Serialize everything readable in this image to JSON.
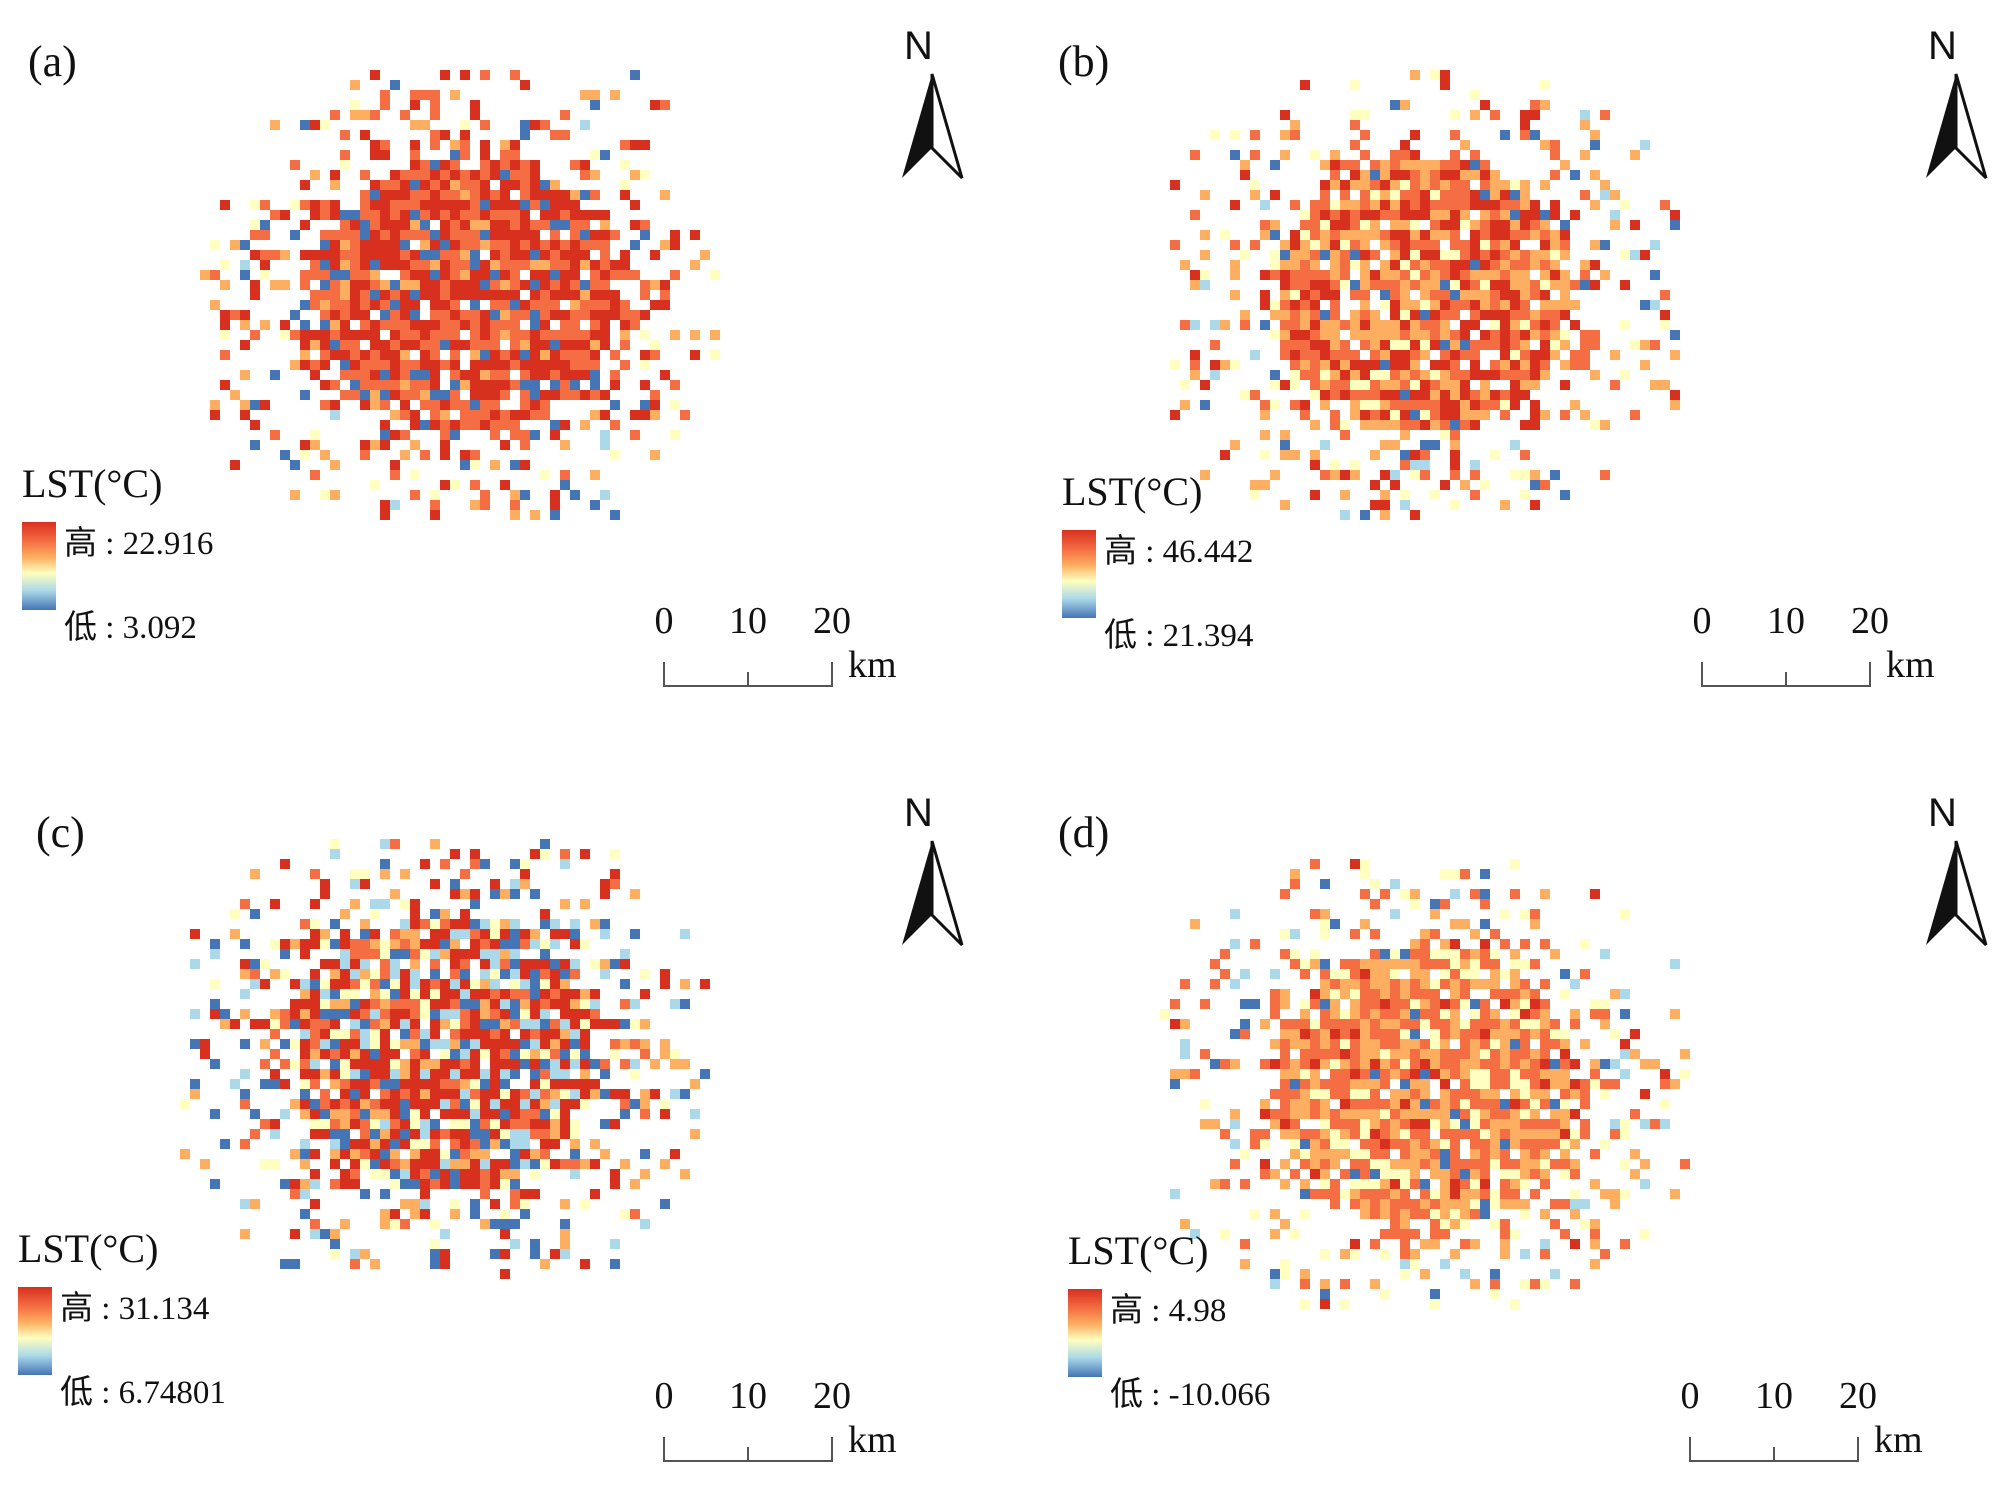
{
  "figure": {
    "panels": [
      {
        "label": "(a)",
        "north": "N",
        "legend_title": "LST(°C)",
        "high_label": "高 : 22.916",
        "low_label": "低 : 3.092",
        "scale_ticks": [
          "0",
          "10",
          "20"
        ],
        "scale_unit": "km",
        "palette": "warm"
      },
      {
        "label": "(b)",
        "north": "N",
        "legend_title": "LST(°C)",
        "high_label": "高 : 46.442",
        "low_label": "低 : 21.394",
        "scale_ticks": [
          "0",
          "10",
          "20"
        ],
        "scale_unit": "km",
        "palette": "mixed"
      },
      {
        "label": "(c)",
        "north": "N",
        "legend_title": "LST(°C)",
        "high_label": "高 : 31.134",
        "low_label": "低 : 6.74801",
        "scale_ticks": [
          "0",
          "10",
          "20"
        ],
        "scale_unit": "km",
        "palette": "split"
      },
      {
        "label": "(d)",
        "north": "N",
        "legend_title": "LST(°C)",
        "high_label": "高 : 4.98",
        "low_label": "低 : -10.066",
        "scale_ticks": [
          "0",
          "10",
          "20"
        ],
        "scale_unit": "km",
        "palette": "light"
      }
    ],
    "colors": {
      "ramp": [
        "#d7301f",
        "#f46d43",
        "#fdae61",
        "#ffffbf",
        "#abd9e9",
        "#4575b4"
      ],
      "cool": "#4575b4"
    }
  }
}
